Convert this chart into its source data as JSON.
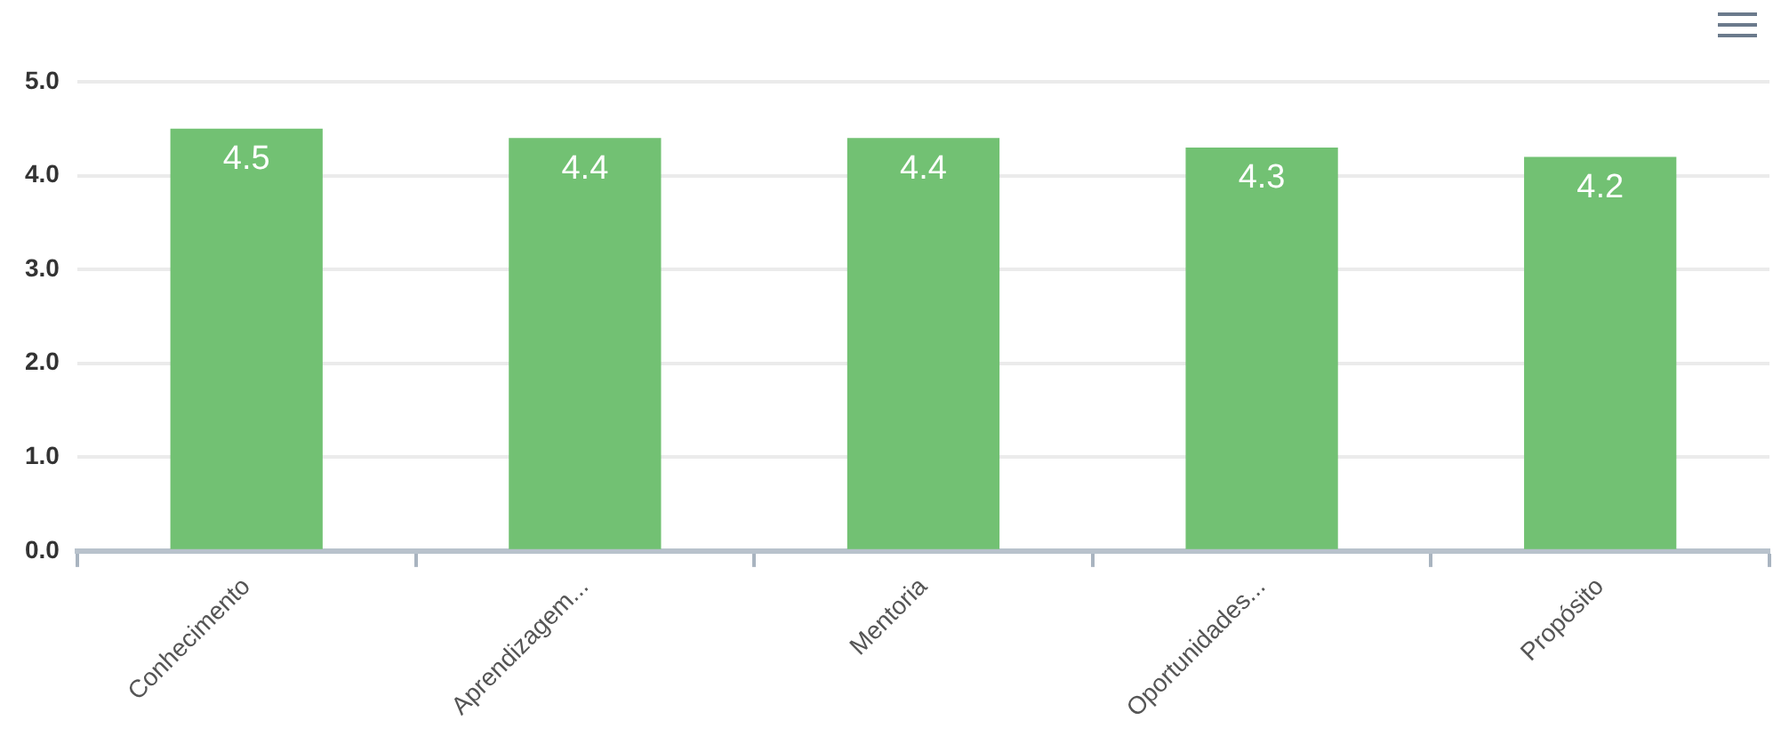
{
  "chart_data": {
    "type": "bar",
    "categories": [
      "Conhecimento",
      "Aprendizagem...",
      "Mentoria",
      "Oportunidades...",
      "Propósito"
    ],
    "values": [
      4.5,
      4.4,
      4.4,
      4.3,
      4.2
    ],
    "color": "#72c173",
    "ylim": [
      0,
      5
    ],
    "yticks": [
      {
        "value": 0,
        "label": "0.0"
      },
      {
        "value": 1,
        "label": "1.0"
      },
      {
        "value": 2,
        "label": "2.0"
      },
      {
        "value": 3,
        "label": "3.0"
      },
      {
        "value": 4,
        "label": "4.0"
      },
      {
        "value": 5,
        "label": "5.0"
      }
    ],
    "grid": "y",
    "data_labels": true
  }
}
